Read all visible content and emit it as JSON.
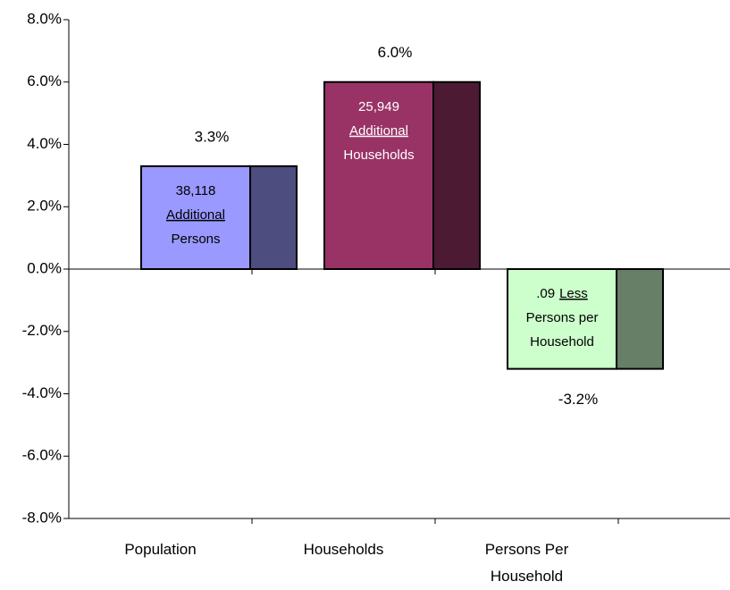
{
  "chart_data": {
    "type": "bar",
    "categories": [
      "Population",
      "Households",
      "Persons Per Household"
    ],
    "values": [
      3.3,
      6.0,
      -3.2
    ],
    "value_labels": [
      "3.3%",
      "6.0%",
      "-3.2%"
    ],
    "colors": [
      "#9999ff",
      "#993366",
      "#ccffcc"
    ],
    "side_colors": [
      "#4d4d80",
      "#4d1a33",
      "#667f66"
    ],
    "annotation_colors": [
      "#000000",
      "#ffffff",
      "#000000"
    ],
    "annotations": [
      [
        [
          "38,118"
        ],
        [
          "Additional"
        ],
        [
          "Persons"
        ]
      ],
      [
        [
          "25,949"
        ],
        [
          "Additional"
        ],
        [
          "Households"
        ]
      ],
      [
        [
          ".09",
          "Less"
        ],
        [
          "Persons per"
        ],
        [
          "Household"
        ]
      ]
    ],
    "ylim": [
      -8,
      8
    ],
    "yticks": [
      {
        "value": -8,
        "label": "-8.0%"
      },
      {
        "value": -6,
        "label": "-6.0%"
      },
      {
        "value": -4,
        "label": "-4.0%"
      },
      {
        "value": -2,
        "label": "-2.0%"
      },
      {
        "value": 0,
        "label": "0.0%"
      },
      {
        "value": 2,
        "label": "2.0%"
      },
      {
        "value": 4,
        "label": "4.0%"
      },
      {
        "value": 6,
        "label": "6.0%"
      },
      {
        "value": 8,
        "label": "8.0%"
      }
    ]
  }
}
